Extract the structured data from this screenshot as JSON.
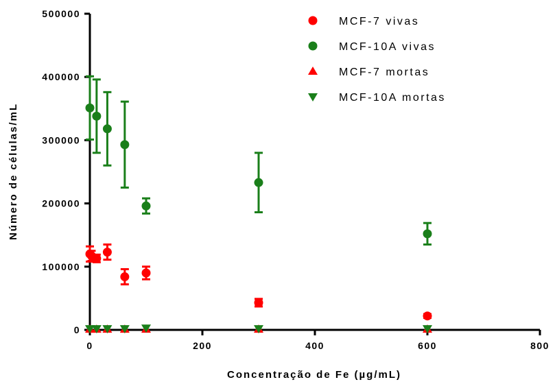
{
  "chart_data": {
    "type": "scatter",
    "xlabel": "Concentração de Fe (µg/mL)",
    "ylabel": "Número de células/mL",
    "xlim": [
      0,
      800
    ],
    "ylim": [
      0,
      500000
    ],
    "x_ticks": [
      "0",
      "200",
      "400",
      "600",
      "800"
    ],
    "y_ticks": [
      "0",
      "100000",
      "200000",
      "300000",
      "400000",
      "500000"
    ],
    "legend_position": "top-right",
    "grid": false,
    "series": [
      {
        "name": "MCF-7 vivas",
        "marker": "circle",
        "color": "#ff0000",
        "points": [
          {
            "x": 0,
            "y": 120000,
            "err": 12000
          },
          {
            "x": 3,
            "y": 117000,
            "err": 8000
          },
          {
            "x": 12,
            "y": 113000,
            "err": 6000
          },
          {
            "x": 31,
            "y": 123000,
            "err": 12000
          },
          {
            "x": 62,
            "y": 84000,
            "err": 12000
          },
          {
            "x": 100,
            "y": 90000,
            "err": 10000
          },
          {
            "x": 300,
            "y": 43000,
            "err": 6000
          },
          {
            "x": 600,
            "y": 22000,
            "err": 3000
          }
        ]
      },
      {
        "name": "MCF-10A vivas",
        "marker": "circle",
        "color": "#1a7f1a",
        "points": [
          {
            "x": 0,
            "y": 351000,
            "err": 50000
          },
          {
            "x": 12,
            "y": 338000,
            "err": 58000
          },
          {
            "x": 31,
            "y": 318000,
            "err": 58000
          },
          {
            "x": 62,
            "y": 293000,
            "err": 68000
          },
          {
            "x": 100,
            "y": 196000,
            "err": 12000
          },
          {
            "x": 300,
            "y": 233000,
            "err": 47000
          },
          {
            "x": 600,
            "y": 152000,
            "err": 17000
          }
        ]
      },
      {
        "name": "MCF-7 mortas",
        "marker": "triangle-up",
        "color": "#ff0000",
        "points": [
          {
            "x": 0,
            "y": 1000,
            "err": 0
          },
          {
            "x": 12,
            "y": 1000,
            "err": 0
          },
          {
            "x": 31,
            "y": 1000,
            "err": 0
          },
          {
            "x": 62,
            "y": 1000,
            "err": 0
          },
          {
            "x": 100,
            "y": 1000,
            "err": 0
          },
          {
            "x": 300,
            "y": 1000,
            "err": 0
          },
          {
            "x": 600,
            "y": 1000,
            "err": 0
          }
        ]
      },
      {
        "name": "MCF-10A mortas",
        "marker": "triangle-down",
        "color": "#1a7f1a",
        "points": [
          {
            "x": 0,
            "y": 2000,
            "err": 0
          },
          {
            "x": 12,
            "y": 2000,
            "err": 0
          },
          {
            "x": 31,
            "y": 2000,
            "err": 0
          },
          {
            "x": 62,
            "y": 2000,
            "err": 0
          },
          {
            "x": 100,
            "y": 3000,
            "err": 0
          },
          {
            "x": 300,
            "y": 2000,
            "err": 0
          },
          {
            "x": 600,
            "y": 2000,
            "err": 0
          }
        ]
      }
    ]
  }
}
